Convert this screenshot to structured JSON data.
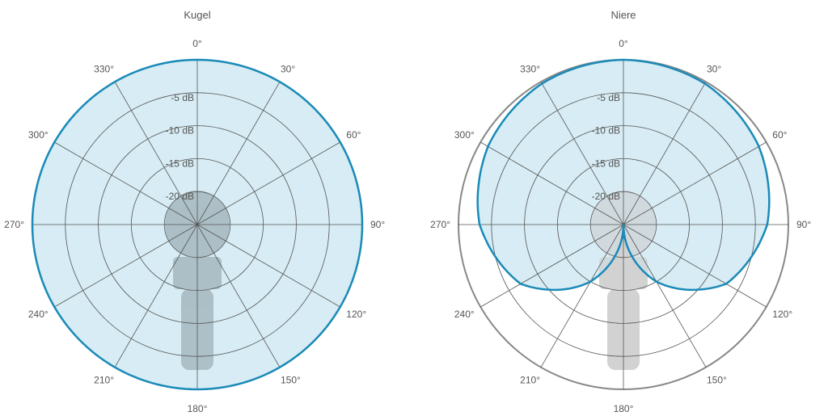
{
  "chart_data": [
    {
      "type": "polar",
      "title": "Kugel",
      "pattern": "omnidirectional",
      "angle_labels": [
        "0°",
        "30°",
        "60°",
        "90°",
        "120°",
        "150°",
        "180°",
        "210°",
        "240°",
        "270°",
        "300°",
        "330°"
      ],
      "ring_labels": [
        "-5 dB",
        "-10 dB",
        "-15 dB",
        "-20 dB"
      ],
      "ring_values_db": [
        0,
        -5,
        -10,
        -15,
        -20,
        -25
      ],
      "response": [
        {
          "angle": 0,
          "db": 0
        },
        {
          "angle": 30,
          "db": 0
        },
        {
          "angle": 60,
          "db": 0
        },
        {
          "angle": 90,
          "db": 0
        },
        {
          "angle": 120,
          "db": 0
        },
        {
          "angle": 150,
          "db": 0
        },
        {
          "angle": 180,
          "db": 0
        },
        {
          "angle": 210,
          "db": 0
        },
        {
          "angle": 240,
          "db": 0
        },
        {
          "angle": 270,
          "db": 0
        },
        {
          "angle": 300,
          "db": 0
        },
        {
          "angle": 330,
          "db": 0
        }
      ]
    },
    {
      "type": "polar",
      "title": "Niere",
      "pattern": "cardioid",
      "angle_labels": [
        "0°",
        "30°",
        "60°",
        "90°",
        "120°",
        "150°",
        "180°",
        "210°",
        "240°",
        "270°",
        "300°",
        "330°"
      ],
      "ring_labels": [
        "-5 dB",
        "-10 dB",
        "-15 dB",
        "-20 dB"
      ],
      "ring_values_db": [
        0,
        -5,
        -10,
        -15,
        -20,
        -25
      ],
      "response": [
        {
          "angle": 0,
          "db": 0
        },
        {
          "angle": 30,
          "db": -0.3
        },
        {
          "angle": 60,
          "db": -1.3
        },
        {
          "angle": 90,
          "db": -3.2
        },
        {
          "angle": 120,
          "db": -7
        },
        {
          "angle": 150,
          "db": -15
        },
        {
          "angle": 180,
          "db": -25
        }
      ]
    }
  ],
  "colors": {
    "fill": "#cde7f1",
    "stroke": "#1a8ab8",
    "grid": "#555555",
    "outer_ring": "#888888",
    "mic_dark": "#9aa9ae",
    "mic_light": "#d2d2d2"
  }
}
